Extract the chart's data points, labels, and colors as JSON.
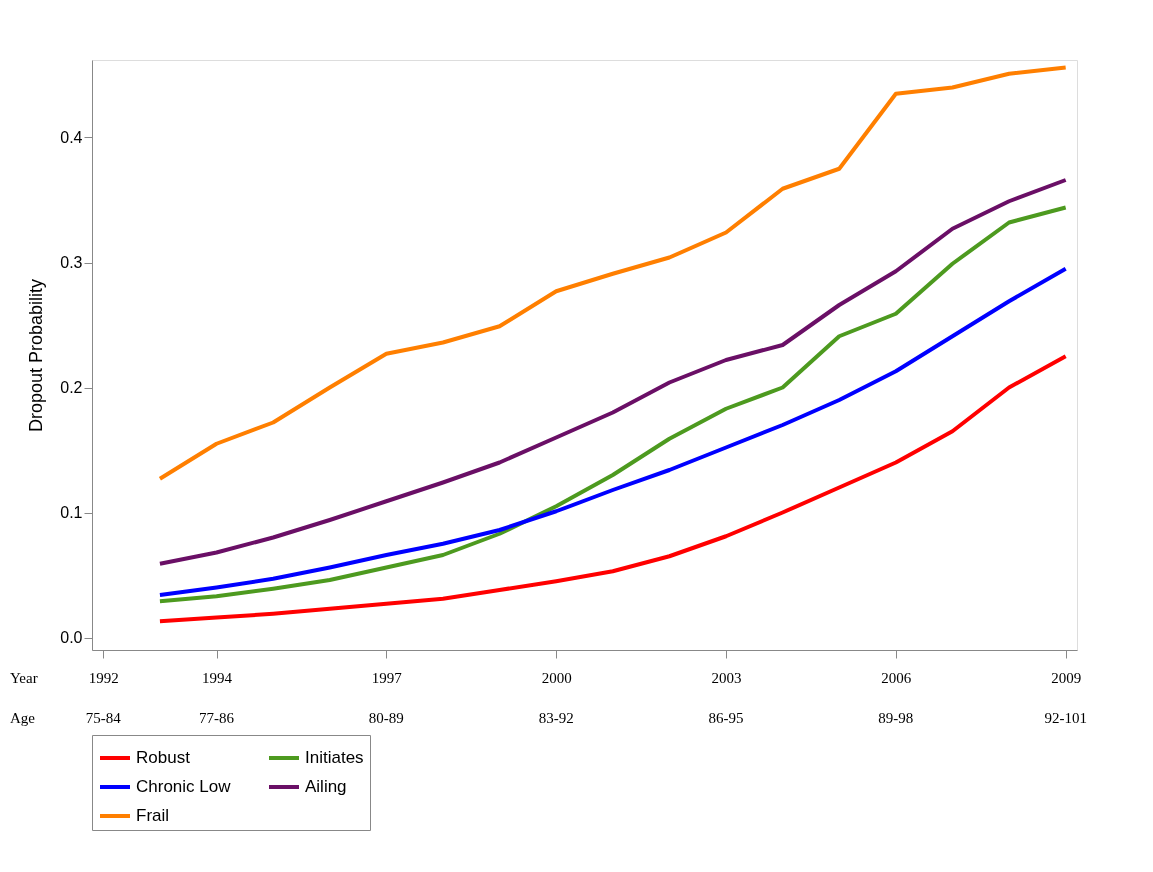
{
  "chart_data": {
    "type": "line",
    "ylabel": "Dropout Probability",
    "x": [
      1993,
      1994,
      1995,
      1996,
      1997,
      1998,
      1999,
      2000,
      2001,
      2002,
      2003,
      2004,
      2005,
      2006,
      2007,
      2008,
      2009
    ],
    "series": [
      {
        "name": "Robust",
        "color": "#ff0000",
        "values": [
          0.013,
          0.016,
          0.019,
          0.023,
          0.027,
          0.031,
          0.038,
          0.045,
          0.053,
          0.065,
          0.081,
          0.1,
          0.12,
          0.14,
          0.165,
          0.2,
          0.225
        ]
      },
      {
        "name": "Initiates",
        "color": "#4d9a1f",
        "values": [
          0.029,
          0.033,
          0.039,
          0.046,
          0.056,
          0.066,
          0.083,
          0.105,
          0.13,
          0.159,
          0.183,
          0.2,
          0.241,
          0.259,
          0.299,
          0.332,
          0.344
        ]
      },
      {
        "name": "Chronic Low",
        "color": "#0000ff",
        "values": [
          0.034,
          0.04,
          0.047,
          0.056,
          0.066,
          0.075,
          0.086,
          0.101,
          0.118,
          0.134,
          0.152,
          0.17,
          0.19,
          0.213,
          0.241,
          0.269,
          0.295
        ]
      },
      {
        "name": "Ailing",
        "color": "#6a0f66",
        "values": [
          0.059,
          0.068,
          0.08,
          0.094,
          0.109,
          0.124,
          0.14,
          0.16,
          0.18,
          0.204,
          0.222,
          0.234,
          0.266,
          0.293,
          0.327,
          0.349,
          0.366
        ]
      },
      {
        "name": "Frail",
        "color": "#ff7f00",
        "values": [
          0.127,
          0.155,
          0.172,
          0.2,
          0.227,
          0.236,
          0.249,
          0.277,
          0.291,
          0.304,
          0.324,
          0.359,
          0.375,
          0.435,
          0.44,
          0.451,
          0.456
        ]
      }
    ],
    "xlim": [
      1991.8,
      2009.2
    ],
    "xticks": [
      1992,
      1994,
      1997,
      2000,
      2003,
      2006,
      2009
    ],
    "ylim": [
      -0.01,
      0.462
    ],
    "yticks": [
      {
        "value": 0,
        "label": "0.0"
      },
      {
        "value": 0.1,
        "label": "0.1"
      },
      {
        "value": 0.2,
        "label": "0.2"
      },
      {
        "value": 0.3,
        "label": "0.3"
      },
      {
        "value": 0.4,
        "label": "0.4"
      }
    ],
    "annotations": [
      "Year",
      "Age",
      "75-84",
      "77-86",
      "80-89",
      "83-92",
      "86-95",
      "89-98",
      "92-101"
    ],
    "grid": false,
    "legend": "bottom",
    "line_style": "solid",
    "marker": "none"
  }
}
